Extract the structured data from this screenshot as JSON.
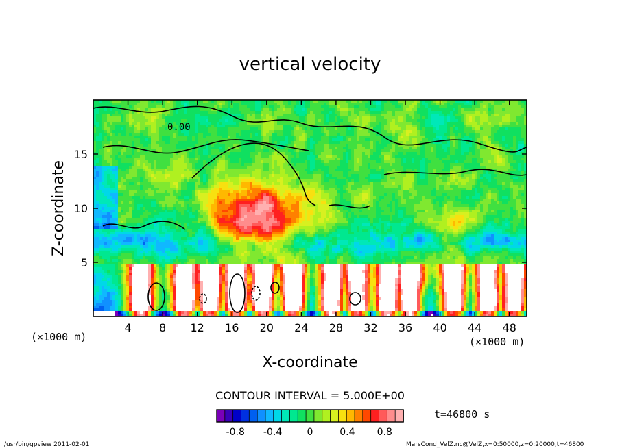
{
  "chart_data": {
    "type": "heatmap",
    "title": "vertical velocity",
    "xlabel": "X-coordinate",
    "ylabel": "Z-coordinate",
    "x_units_left": "(×1000 m)",
    "x_units_right": "(×1000 m)",
    "xlim": [
      0,
      50
    ],
    "ylim": [
      0,
      20
    ],
    "x_ticks": [
      4,
      8,
      12,
      16,
      20,
      24,
      28,
      32,
      36,
      40,
      44,
      48
    ],
    "y_ticks": [
      5,
      10,
      15
    ],
    "contour_label": "0.00",
    "contour_interval": "CONTOUR INTERVAL = 5.000E+00",
    "time_label": "t=46800 s",
    "colorbar": {
      "vmin": -1.0,
      "vmax": 1.0,
      "tick_values": [
        -0.8,
        -0.4,
        0,
        0.4,
        0.8
      ],
      "tick_labels": [
        "-0.8",
        "-0.4",
        "0",
        "0.4",
        "0.8"
      ],
      "colors": [
        "#7a00b8",
        "#3a00b8",
        "#0000c8",
        "#0030e0",
        "#0060f0",
        "#1090ff",
        "#10b8ff",
        "#00d8e8",
        "#00e8b8",
        "#00e890",
        "#10e060",
        "#40e040",
        "#80e830",
        "#b0f020",
        "#d8f020",
        "#f8e010",
        "#ffb800",
        "#ff8000",
        "#ff4800",
        "#ff2020",
        "#ff5a5a",
        "#ff8c8c",
        "#ffb0b0"
      ]
    },
    "footer_left": "/usr/bin/gpview   2011-02-01",
    "footer_right": "MarsCond_VelZ.nc@VelZ,x=0:50000,z=0:20000,t=46800"
  }
}
